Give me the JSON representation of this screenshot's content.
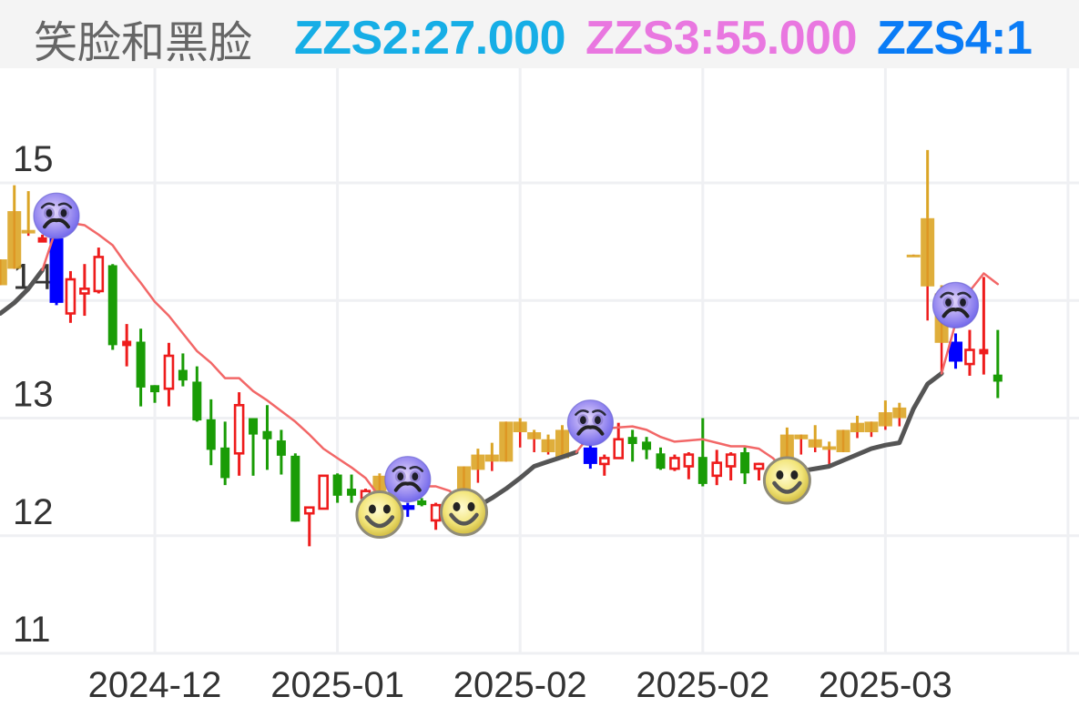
{
  "header": {
    "title": "笑脸和黑脸",
    "indicators": [
      {
        "text": "ZZS2:27.000",
        "color": "#16aee6"
      },
      {
        "text": "ZZS3:55.000",
        "color": "#e977e0"
      },
      {
        "text": "ZZS4:1",
        "color": "#0a7cf6"
      }
    ]
  },
  "chart_data": {
    "type": "bar",
    "subtype": "candlestick_ohlc",
    "title": "笑脸和黑脸",
    "xlabel": "",
    "ylabel": "",
    "grid": true,
    "ylim": [
      11,
      15.975
    ],
    "xlim": [
      -0.02,
      76.78
    ],
    "y_ticks": [
      15,
      14,
      13,
      12,
      11
    ],
    "x_ticks": [
      {
        "i": 11,
        "label": "2024-12"
      },
      {
        "i": 24,
        "label": "2025-01"
      },
      {
        "i": 37,
        "label": "2025-02"
      },
      {
        "i": 50,
        "label": "2025-02"
      },
      {
        "i": 63,
        "label": "2025-03"
      },
      {
        "i": 76,
        "label": ""
      }
    ],
    "colors": {
      "up": "#ee1c1c",
      "down": "#1a9c06",
      "signal": "#0000ff",
      "gold": "#dba526",
      "line_up": "#555555",
      "line_down": "#f26767",
      "grid": "#eff0f3",
      "axis_text": "#333333"
    },
    "candle_fields": [
      "index",
      "kind",
      "open",
      "high",
      "low",
      "close"
    ],
    "candles": [
      [
        0,
        "gold",
        14.13,
        14.35,
        14.13,
        14.35
      ],
      [
        1,
        "gold",
        14.27,
        14.98,
        14.27,
        14.76
      ],
      [
        2,
        "gold",
        14.57,
        14.93,
        14.55,
        14.6
      ],
      [
        3,
        "up",
        14.5,
        14.56,
        14.5,
        14.53
      ],
      [
        4,
        "signal",
        14.53,
        14.54,
        13.96,
        13.98
      ],
      [
        5,
        "up",
        13.89,
        14.25,
        13.81,
        14.18
      ],
      [
        6,
        "up",
        14.06,
        14.31,
        13.87,
        14.1
      ],
      [
        7,
        "up",
        14.08,
        14.45,
        14.06,
        14.37
      ],
      [
        8,
        "down",
        14.3,
        14.31,
        13.58,
        13.62
      ],
      [
        9,
        "up",
        13.62,
        13.8,
        13.44,
        13.65
      ],
      [
        10,
        "down",
        13.65,
        13.76,
        13.1,
        13.26
      ],
      [
        11,
        "down",
        13.28,
        13.28,
        13.13,
        13.22
      ],
      [
        12,
        "up",
        13.25,
        13.64,
        13.1,
        13.53
      ],
      [
        13,
        "down",
        13.41,
        13.55,
        13.27,
        13.32
      ],
      [
        14,
        "down",
        13.31,
        13.44,
        12.97,
        12.98
      ],
      [
        15,
        "down",
        12.99,
        13.16,
        12.6,
        12.73
      ],
      [
        16,
        "down",
        12.75,
        12.97,
        12.43,
        12.49
      ],
      [
        17,
        "up",
        12.7,
        13.22,
        12.51,
        13.11
      ],
      [
        18,
        "down",
        13.0,
        13.0,
        12.51,
        12.86
      ],
      [
        19,
        "down",
        12.89,
        13.11,
        12.56,
        12.82
      ],
      [
        20,
        "down",
        12.81,
        12.9,
        12.52,
        12.68
      ],
      [
        21,
        "down",
        12.68,
        12.7,
        12.12,
        12.12
      ],
      [
        22,
        "up",
        12.19,
        12.24,
        11.91,
        12.24
      ],
      [
        23,
        "up",
        12.23,
        12.51,
        12.23,
        12.51
      ],
      [
        24,
        "down",
        12.52,
        12.53,
        12.28,
        12.34
      ],
      [
        25,
        "down",
        12.4,
        12.52,
        12.28,
        12.34
      ],
      [
        26,
        "up",
        12.32,
        12.4,
        12.3,
        12.38
      ],
      [
        27,
        "gold",
        12.38,
        12.53,
        12.3,
        12.51
      ],
      [
        29,
        "signal",
        12.26,
        12.28,
        12.16,
        12.22
      ],
      [
        30,
        "down",
        12.3,
        12.32,
        12.25,
        12.26
      ],
      [
        31,
        "up",
        12.13,
        12.28,
        12.05,
        12.26
      ],
      [
        33,
        "gold",
        12.38,
        12.59,
        12.3,
        12.59
      ],
      [
        34,
        "gold",
        12.56,
        12.74,
        12.45,
        12.69
      ],
      [
        35,
        "gold",
        12.63,
        12.79,
        12.55,
        12.69
      ],
      [
        36,
        "gold",
        12.63,
        12.97,
        12.63,
        12.97
      ],
      [
        37,
        "gold",
        12.88,
        13.0,
        12.75,
        12.97
      ],
      [
        38,
        "gold",
        12.82,
        12.9,
        12.71,
        12.88
      ],
      [
        39,
        "gold",
        12.71,
        12.86,
        12.69,
        12.82
      ],
      [
        40,
        "gold",
        12.66,
        12.94,
        12.66,
        12.9
      ],
      [
        42,
        "signal",
        12.75,
        12.78,
        12.57,
        12.61
      ],
      [
        43,
        "up",
        12.61,
        12.69,
        12.51,
        12.66
      ],
      [
        44,
        "up",
        12.66,
        12.96,
        12.66,
        12.82
      ],
      [
        45,
        "down",
        12.84,
        12.9,
        12.63,
        12.78
      ],
      [
        46,
        "down",
        12.8,
        12.84,
        12.65,
        12.73
      ],
      [
        47,
        "down",
        12.7,
        12.75,
        12.56,
        12.57
      ],
      [
        48,
        "up",
        12.57,
        12.69,
        12.55,
        12.66
      ],
      [
        49,
        "up",
        12.59,
        12.71,
        12.48,
        12.69
      ],
      [
        50,
        "down",
        12.67,
        13.0,
        12.42,
        12.44
      ],
      [
        51,
        "up",
        12.51,
        12.73,
        12.43,
        12.62
      ],
      [
        52,
        "up",
        12.59,
        12.71,
        12.47,
        12.69
      ],
      [
        53,
        "down",
        12.71,
        12.75,
        12.44,
        12.53
      ],
      [
        54,
        "up",
        12.57,
        12.62,
        12.47,
        12.61
      ],
      [
        56,
        "gold",
        12.66,
        12.92,
        12.66,
        12.86
      ],
      [
        57,
        "gold",
        12.82,
        12.86,
        12.69,
        12.86
      ],
      [
        58,
        "gold",
        12.75,
        12.94,
        12.71,
        12.82
      ],
      [
        59,
        "gold",
        12.73,
        12.8,
        12.59,
        12.76
      ],
      [
        60,
        "gold",
        12.71,
        12.9,
        12.71,
        12.9
      ],
      [
        61,
        "gold",
        12.88,
        13.02,
        12.83,
        12.96
      ],
      [
        62,
        "gold",
        12.88,
        12.97,
        12.84,
        12.97
      ],
      [
        63,
        "gold",
        12.93,
        13.15,
        12.9,
        13.05
      ],
      [
        64,
        "gold",
        13.0,
        13.13,
        12.93,
        13.09
      ],
      [
        65,
        "gold",
        14.38,
        14.39,
        14.38,
        14.39
      ],
      [
        66,
        "gold",
        14.12,
        15.28,
        13.83,
        14.7
      ],
      [
        67,
        "gold",
        13.64,
        14.13,
        13.37,
        14.06
      ],
      [
        68,
        "signal",
        13.65,
        13.72,
        13.42,
        13.48
      ],
      [
        69,
        "up",
        13.46,
        13.75,
        13.36,
        13.58
      ],
      [
        70,
        "up",
        13.55,
        14.2,
        13.37,
        13.58
      ],
      [
        71,
        "down",
        13.37,
        13.75,
        13.17,
        13.31
      ]
    ],
    "trend_segments": [
      {
        "direction": "up",
        "points": [
          [
            0,
            13.89
          ],
          [
            1,
            13.98
          ],
          [
            2,
            14.1
          ],
          [
            3,
            14.26
          ]
        ]
      },
      {
        "direction": "down",
        "points": [
          [
            3,
            14.26
          ],
          [
            4,
            14.62
          ],
          [
            5,
            14.66
          ],
          [
            6,
            14.64
          ],
          [
            7,
            14.56
          ],
          [
            8,
            14.47
          ],
          [
            9,
            14.3
          ],
          [
            10,
            14.15
          ],
          [
            11,
            13.99
          ],
          [
            12,
            13.87
          ],
          [
            13,
            13.72
          ],
          [
            14,
            13.57
          ],
          [
            15,
            13.47
          ],
          [
            16,
            13.34
          ],
          [
            17,
            13.34
          ],
          [
            18,
            13.23
          ],
          [
            19,
            13.15
          ],
          [
            20,
            13.06
          ],
          [
            21,
            12.97
          ],
          [
            22,
            12.86
          ],
          [
            23,
            12.74
          ],
          [
            24,
            12.66
          ],
          [
            25,
            12.58
          ],
          [
            26,
            12.49
          ],
          [
            27,
            12.33
          ],
          [
            28,
            12.37
          ],
          [
            29,
            12.4
          ],
          [
            30,
            12.42
          ],
          [
            31,
            12.42
          ],
          [
            32,
            12.38
          ],
          [
            33,
            12.22
          ]
        ]
      },
      {
        "direction": "up",
        "points": [
          [
            33,
            12.21
          ],
          [
            34,
            12.25
          ],
          [
            35,
            12.32
          ],
          [
            36,
            12.4
          ],
          [
            37,
            12.49
          ],
          [
            38,
            12.59
          ],
          [
            39,
            12.63
          ],
          [
            40,
            12.67
          ],
          [
            41,
            12.71
          ]
        ]
      },
      {
        "direction": "down",
        "points": [
          [
            41,
            12.71
          ],
          [
            42,
            12.86
          ],
          [
            43,
            12.91
          ],
          [
            44,
            12.92
          ],
          [
            45,
            12.93
          ],
          [
            46,
            12.9
          ],
          [
            47,
            12.84
          ],
          [
            48,
            12.8
          ],
          [
            49,
            12.81
          ],
          [
            50,
            12.82
          ],
          [
            51,
            12.79
          ],
          [
            52,
            12.76
          ],
          [
            53,
            12.76
          ],
          [
            54,
            12.74
          ],
          [
            55,
            12.66
          ],
          [
            56,
            12.53
          ]
        ]
      },
      {
        "direction": "up",
        "points": [
          [
            56,
            12.52
          ],
          [
            57,
            12.55
          ],
          [
            58,
            12.57
          ],
          [
            59,
            12.59
          ],
          [
            60,
            12.64
          ],
          [
            61,
            12.69
          ],
          [
            62,
            12.74
          ],
          [
            63,
            12.77
          ],
          [
            64,
            12.79
          ],
          [
            65,
            13.08
          ],
          [
            66,
            13.29
          ],
          [
            67,
            13.38
          ]
        ]
      },
      {
        "direction": "down",
        "points": [
          [
            67,
            13.38
          ],
          [
            68,
            13.81
          ],
          [
            69,
            14.08
          ],
          [
            70,
            14.23
          ],
          [
            71,
            14.14
          ]
        ]
      }
    ],
    "markers": [
      {
        "type": "sad",
        "i": 4,
        "price": 14.72
      },
      {
        "type": "sad",
        "i": 29,
        "price": 12.48
      },
      {
        "type": "sad",
        "i": 42,
        "price": 12.96
      },
      {
        "type": "sad",
        "i": 68,
        "price": 13.96
      },
      {
        "type": "smile",
        "i": 27,
        "price": 12.18
      },
      {
        "type": "smile",
        "i": 33,
        "price": 12.2
      },
      {
        "type": "smile",
        "i": 56,
        "price": 12.47
      }
    ]
  }
}
